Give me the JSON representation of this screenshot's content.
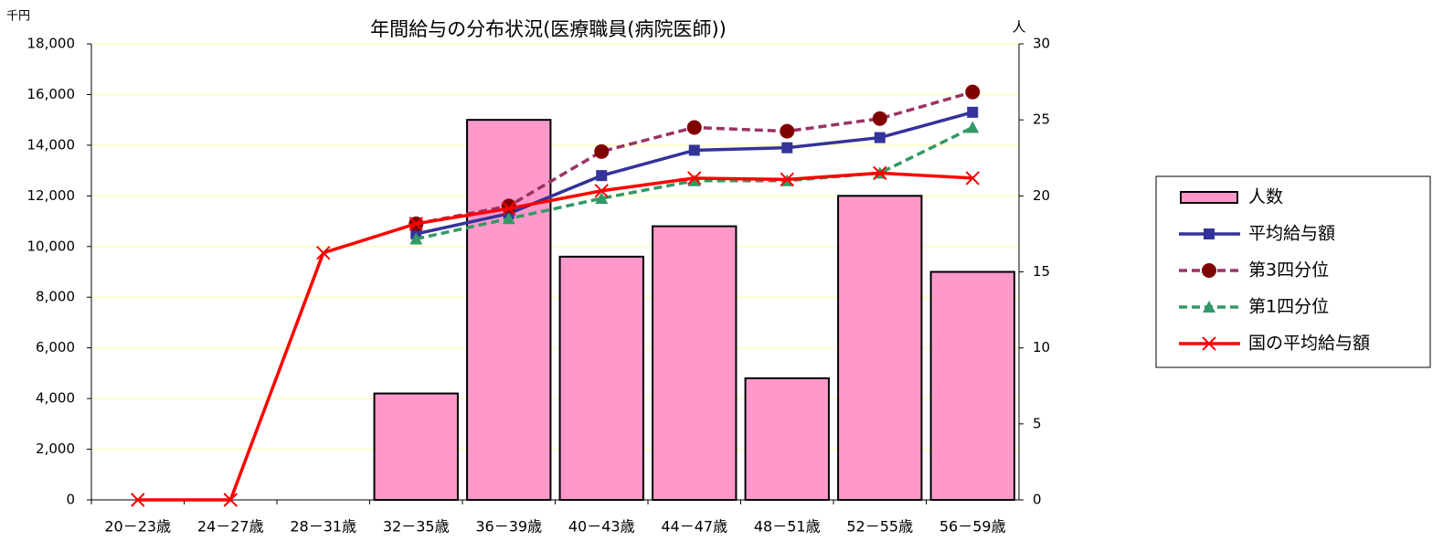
{
  "chart_data": {
    "type": "combo",
    "title": "年間給与の分布状況(医療職員(病院医師))",
    "y_unit": "千円",
    "y2_unit": "人",
    "categories": [
      "20－23歳",
      "24－27歳",
      "28－31歳",
      "32－35歳",
      "36－39歳",
      "40－43歳",
      "44－47歳",
      "48－51歳",
      "52－55歳",
      "56－59歳"
    ],
    "ylim": [
      0,
      18000
    ],
    "yticks": [
      0,
      {
        "value": 2000,
        "label": "2,000"
      },
      {
        "value": 4000,
        "label": "4,000"
      },
      {
        "value": 6000,
        "label": "6,000"
      },
      {
        "value": 8000,
        "label": "8,000"
      },
      {
        "value": 10000,
        "label": "10,000"
      },
      {
        "value": 12000,
        "label": "12,000"
      },
      {
        "value": 14000,
        "label": "14,000"
      },
      {
        "value": 16000,
        "label": "16,000"
      },
      {
        "value": 18000,
        "label": "18,000"
      }
    ],
    "y2lim": [
      0,
      30
    ],
    "y2ticks": [
      0,
      5,
      10,
      15,
      20,
      25,
      30
    ],
    "grid": true,
    "legend": "right",
    "series": [
      {
        "name": "人数",
        "type": "bar",
        "axis": "y2",
        "color": "#ff99cc",
        "values": [
          null,
          null,
          null,
          7,
          25,
          16,
          18,
          8,
          20,
          15
        ]
      },
      {
        "name": "平均給与額",
        "type": "line",
        "marker": "square",
        "dash": false,
        "color": "#333399",
        "values": [
          null,
          null,
          null,
          10500,
          11300,
          12800,
          13800,
          13900,
          14300,
          15300
        ]
      },
      {
        "name": "第3四分位",
        "type": "line",
        "marker": "circle",
        "dash": true,
        "color": "#993366",
        "marker_color": "#800000",
        "values": [
          null,
          null,
          null,
          10900,
          11600,
          13750,
          14700,
          14550,
          15050,
          16100
        ]
      },
      {
        "name": "第1四分位",
        "type": "line",
        "marker": "triangle",
        "dash": true,
        "color": "#339966",
        "values": [
          null,
          null,
          null,
          10300,
          11100,
          11900,
          12600,
          12600,
          12900,
          14700
        ]
      },
      {
        "name": "国の平均給与額",
        "type": "line",
        "marker": "x",
        "dash": false,
        "color": "#ff0000",
        "values": [
          0,
          0,
          9750,
          10900,
          11500,
          12200,
          12700,
          12650,
          12900,
          12700
        ]
      }
    ]
  }
}
